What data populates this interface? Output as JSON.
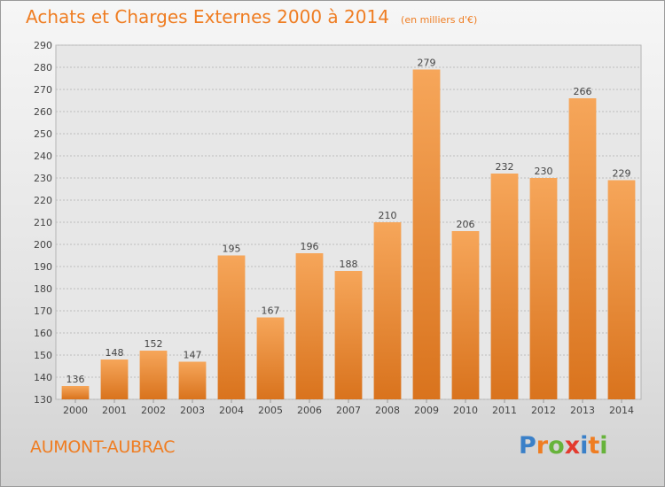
{
  "header": {
    "title": "Achats et Charges Externes 2000 à 2014",
    "subtitle": "(en milliers d'€)"
  },
  "footer": {
    "city": "AUMONT-AUBRAC",
    "logo_text": "Proxiti"
  },
  "colors": {
    "accent": "#ef7d22",
    "bar_light": "#f6a65a",
    "bar_dark": "#d9731d",
    "logo": [
      "#3a80c8",
      "#ef7d22",
      "#67b33b",
      "#e33a2e",
      "#3a80c8",
      "#ef7d22",
      "#67b33b"
    ]
  },
  "chart_data": {
    "type": "bar",
    "categories": [
      "2000",
      "2001",
      "2002",
      "2003",
      "2004",
      "2005",
      "2006",
      "2007",
      "2008",
      "2009",
      "2010",
      "2011",
      "2012",
      "2013",
      "2014"
    ],
    "values": [
      136,
      148,
      152,
      147,
      195,
      167,
      196,
      188,
      210,
      279,
      206,
      232,
      230,
      266,
      229
    ],
    "ylim": [
      130,
      290
    ],
    "yticks": [
      130,
      140,
      150,
      160,
      170,
      180,
      190,
      200,
      210,
      220,
      230,
      240,
      250,
      260,
      270,
      280,
      290
    ],
    "grid": true,
    "xlabel": "",
    "ylabel": ""
  }
}
